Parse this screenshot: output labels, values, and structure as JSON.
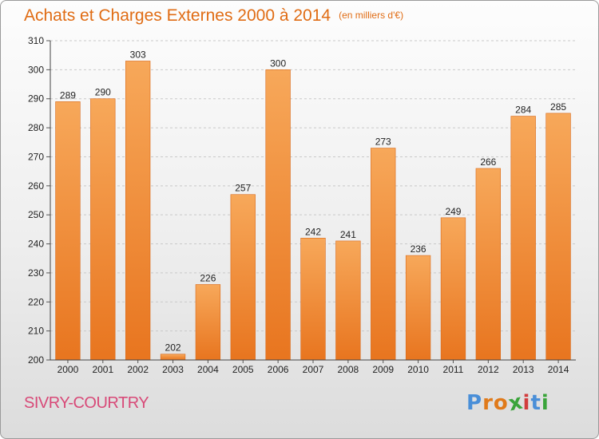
{
  "header": {
    "title": "Achats et Charges Externes 2000 à 2014",
    "subtitle": "(en milliers d'€)"
  },
  "footer": {
    "city": "SIVRY-COURTRY",
    "logo_letters": [
      "P",
      "r",
      "o",
      "x",
      "i",
      "t",
      "i"
    ],
    "logo_colors": [
      "#4a8fd8",
      "#e07a1a",
      "#e07a1a",
      "#3aa43a",
      "#d23c3c",
      "#4a8fd8",
      "#3aa43a"
    ]
  },
  "chart_data": {
    "type": "bar",
    "title": "Achats et Charges Externes 2000 à 2014",
    "subtitle": "(en milliers d'€)",
    "xlabel": "",
    "ylabel": "",
    "categories": [
      "2000",
      "2001",
      "2002",
      "2003",
      "2004",
      "2005",
      "2006",
      "2007",
      "2008",
      "2009",
      "2010",
      "2011",
      "2012",
      "2013",
      "2014"
    ],
    "values": [
      289,
      290,
      303,
      202,
      226,
      257,
      300,
      242,
      241,
      273,
      236,
      249,
      266,
      284,
      285
    ],
    "ylim": [
      200,
      310
    ],
    "yticks": [
      200,
      210,
      220,
      230,
      240,
      250,
      260,
      270,
      280,
      290,
      300,
      310
    ],
    "grid": true,
    "data_labels": true,
    "colors": {
      "bar_light": "#f7a85a",
      "bar_dark": "#e8751f",
      "text": "#222222",
      "grid": "#c9c9c9"
    }
  }
}
